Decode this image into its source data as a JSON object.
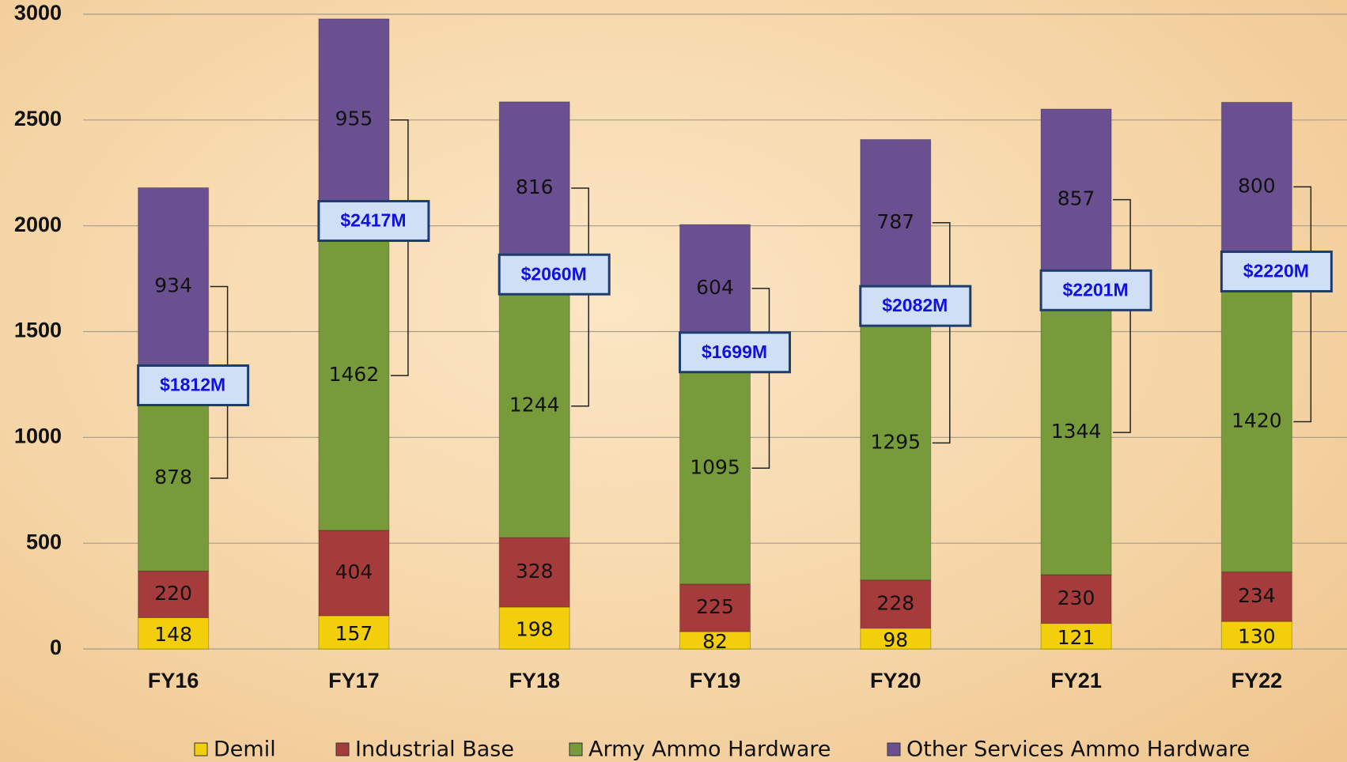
{
  "chart_data": {
    "type": "stacked_bar",
    "categories": [
      "FY16",
      "FY17",
      "FY18",
      "FY19",
      "FY20",
      "FY21",
      "FY22"
    ],
    "series": [
      {
        "name": "Demil",
        "color": "#f2cf0a",
        "values": [
          148,
          157,
          198,
          82,
          98,
          121,
          130
        ]
      },
      {
        "name": "Industrial Base",
        "color": "#a63b3b",
        "values": [
          220,
          404,
          328,
          225,
          228,
          230,
          234
        ]
      },
      {
        "name": "Army Ammo Hardware",
        "color": "#779a3a",
        "values": [
          878,
          1462,
          1244,
          1095,
          1295,
          1344,
          1420
        ]
      },
      {
        "name": "Other Services Ammo Hardware",
        "color": "#6a5090",
        "values": [
          934,
          955,
          816,
          604,
          787,
          857,
          800
        ]
      }
    ],
    "annotations": [
      "$1812M",
      "$2417M",
      "$2060M",
      "$1699M",
      "$2082M",
      "$2201M",
      "$2220M"
    ],
    "ylim": [
      0,
      3000
    ],
    "yticks": [
      0,
      500,
      1000,
      1500,
      2000,
      2500,
      3000
    ],
    "grid": true
  }
}
